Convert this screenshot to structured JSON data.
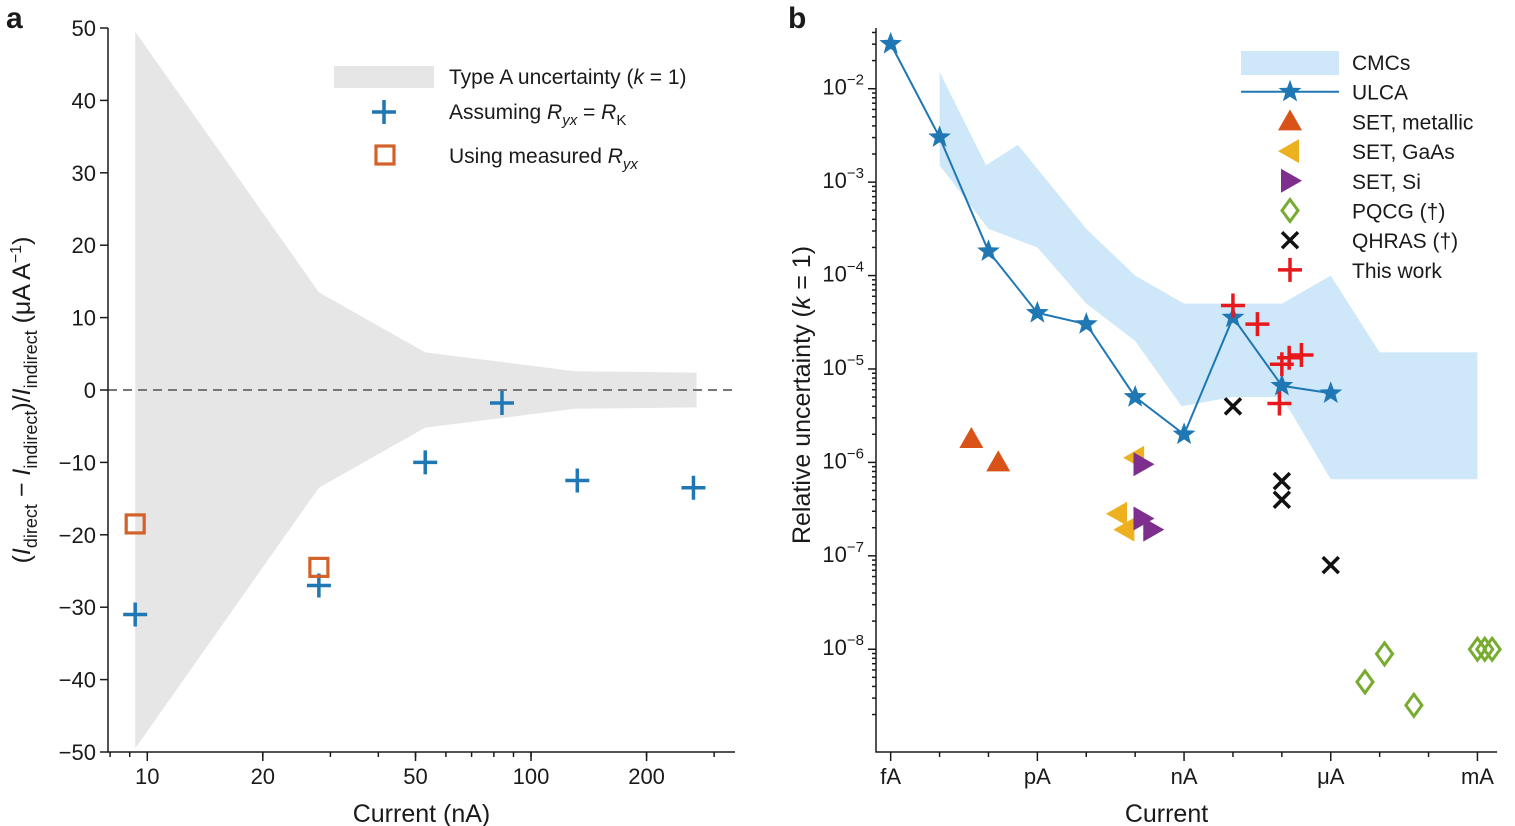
{
  "chart_data": [
    {
      "panel": "a",
      "type": "scatter",
      "title": "",
      "xlabel": "Current (nA)",
      "ylabel": "(I_direct − I_indirect)/I_indirect (μA A⁻¹)",
      "ylabel_parts": {
        "open": "(",
        "i1": "I",
        "s1": "direct",
        "mid": " − ",
        "i2": "I",
        "s2": "indirect",
        "mid2": ")/",
        "i3": "I",
        "s3": "indirect",
        "unit": " (μA A",
        "sup": "−1",
        "close": ")"
      },
      "xscale": "log",
      "xlim": [
        7.9,
        340
      ],
      "ylim": [
        -50,
        50
      ],
      "xticks": [
        10,
        20,
        50,
        100,
        200
      ],
      "xtick_labels": [
        "10",
        "20",
        "50",
        "100",
        "200"
      ],
      "yticks": [
        -50,
        -40,
        -30,
        -20,
        -10,
        0,
        10,
        20,
        30,
        40,
        50
      ],
      "ytick_labels": [
        "−50",
        "−40",
        "−30",
        "−20",
        "−10",
        "0",
        "10",
        "20",
        "30",
        "40",
        "50"
      ],
      "uncertainty_band": {
        "name": "Type A uncertainty (k = 1)",
        "x": [
          9.3,
          28,
          53,
          130,
          270
        ],
        "upper": [
          49.5,
          13.5,
          5.2,
          2.6,
          2.4
        ],
        "lower": [
          -49.5,
          -13.5,
          -5.2,
          -2.6,
          -2.4
        ],
        "color": "#e6e6e6"
      },
      "zero_line": {
        "y": 0,
        "style": "dashed",
        "color": "#777777"
      },
      "series": [
        {
          "name": "Assuming R_yx = R_K",
          "marker": "plus",
          "color": "#1f77b4",
          "x": [
            9.3,
            28,
            53,
            84,
            132,
            265
          ],
          "y": [
            -31,
            -27,
            -10,
            -1.8,
            -12.5,
            -13.5
          ]
        },
        {
          "name": "Using measured R_yx",
          "marker": "open-square",
          "color": "#d2622a",
          "x": [
            9.3,
            28
          ],
          "y": [
            -18.5,
            -24.5
          ]
        }
      ],
      "legend": {
        "placement": "top-right",
        "entries": [
          {
            "parts": [
              "Type A uncertainty (",
              "k",
              " = 1)"
            ]
          },
          {
            "parts": [
              "Assuming ",
              "R",
              "yx",
              " = ",
              "R",
              "K"
            ]
          },
          {
            "parts": [
              "Using measured ",
              "R",
              "yx"
            ]
          }
        ]
      }
    },
    {
      "panel": "b",
      "type": "scatter",
      "title": "",
      "xlabel": "Current",
      "ylabel": "Relative uncertainty (k = 1)",
      "ylabel_parts": [
        "Relative uncertainty (",
        "k",
        " = 1)"
      ],
      "x_note": "x values are log10 of current in amperes",
      "xlim": [
        -15.3,
        -2.6
      ],
      "ylim_log10": [
        -9.1,
        -1.35
      ],
      "xticks": [
        -15,
        -12,
        -9,
        -6,
        -3
      ],
      "xtick_labels": [
        "fA",
        "pA",
        "nA",
        "μA",
        "mA"
      ],
      "xminor": [
        -14,
        -13,
        -11,
        -10,
        -8,
        -7,
        -5,
        -4
      ],
      "yticks_log10": [
        -8,
        -7,
        -6,
        -5,
        -4,
        -3,
        -2
      ],
      "ytick_base": "10",
      "ytick_exps": [
        "−8",
        "−7",
        "−6",
        "−5",
        "−4",
        "−3",
        "−2"
      ],
      "cmc_band": {
        "name": "CMCs",
        "color": "#cfe8f9",
        "upper": [
          [
            -14,
            -1.82
          ],
          [
            -13.05,
            -2.82
          ],
          [
            -12.4,
            -2.6
          ],
          [
            -11,
            -3.5
          ],
          [
            -10,
            -4.0
          ],
          [
            -9,
            -4.3
          ],
          [
            -8,
            -4.3
          ],
          [
            -7,
            -4.3
          ],
          [
            -6,
            -4.0
          ],
          [
            -5,
            -4.82
          ],
          [
            -3,
            -4.82
          ]
        ],
        "lower": [
          [
            -14,
            -2.82
          ],
          [
            -13,
            -3.5
          ],
          [
            -12,
            -3.7
          ],
          [
            -11,
            -4.3
          ],
          [
            -10,
            -4.7
          ],
          [
            -9.05,
            -5.4
          ],
          [
            -8,
            -5.3
          ],
          [
            -7,
            -5.3
          ],
          [
            -6,
            -6.18
          ],
          [
            -3,
            -6.18
          ]
        ]
      },
      "series": [
        {
          "name": "ULCA",
          "marker": "star-line",
          "color": "#1f77b4",
          "x": [
            -15,
            -14,
            -13,
            -12,
            -11,
            -10,
            -9,
            -8,
            -7,
            -6
          ],
          "y_log10": [
            -1.52,
            -2.52,
            -3.74,
            -4.4,
            -4.52,
            -5.3,
            -5.7,
            -4.45,
            -5.18,
            -5.26
          ]
        },
        {
          "name": "SET, metallic",
          "marker": "triangle-up",
          "color": "#d95319",
          "x": [
            -13.35,
            -12.8
          ],
          "y_log10": [
            -5.75,
            -6.0
          ]
        },
        {
          "name": "SET, GaAs",
          "marker": "triangle-left",
          "color": "#edb120",
          "x": [
            -10.0,
            -10.35,
            -10.2
          ],
          "y_log10": [
            -5.95,
            -6.55,
            -6.72
          ]
        },
        {
          "name": "SET, Si",
          "marker": "triangle-right",
          "color": "#7e2f8e",
          "x": [
            -9.85,
            -9.85,
            -9.65
          ],
          "y_log10": [
            -6.02,
            -6.6,
            -6.72
          ]
        },
        {
          "name": "PQCG (†)",
          "marker": "open-diamond",
          "color": "#77ac30",
          "x": [
            -5.3,
            -4.9,
            -4.3,
            -3.0,
            -2.85,
            -2.7
          ],
          "y_log10": [
            -8.35,
            -8.05,
            -8.6,
            -8.0,
            -8.0,
            -8.0
          ]
        },
        {
          "name": "QHRAS (†)",
          "marker": "x",
          "color": "#111111",
          "x": [
            -8.0,
            -7.0,
            -7.0,
            -6.0
          ],
          "y_log10": [
            -5.4,
            -6.2,
            -6.4,
            -7.1
          ]
        },
        {
          "name": "This work",
          "marker": "plus",
          "color": "#e8191c",
          "x": [
            -8.0,
            -7.5,
            -7.0,
            -6.85,
            -6.6,
            -7.05
          ],
          "y_log10": [
            -4.32,
            -4.52,
            -4.95,
            -4.88,
            -4.85,
            -5.37
          ]
        }
      ],
      "legend": {
        "placement": "top-right",
        "entries": [
          "CMCs",
          "ULCA",
          "SET, metallic",
          "SET, GaAs",
          "SET, Si",
          "PQCG (†)",
          "QHRAS (†)",
          "This work"
        ]
      }
    }
  ],
  "panel_labels": [
    "a",
    "b"
  ],
  "colors": {
    "blue": "#1f77b4",
    "orange": "#d2622a",
    "grey_band": "#e6e6e6",
    "cmc": "#cfe8f9",
    "red": "#e8191c"
  }
}
